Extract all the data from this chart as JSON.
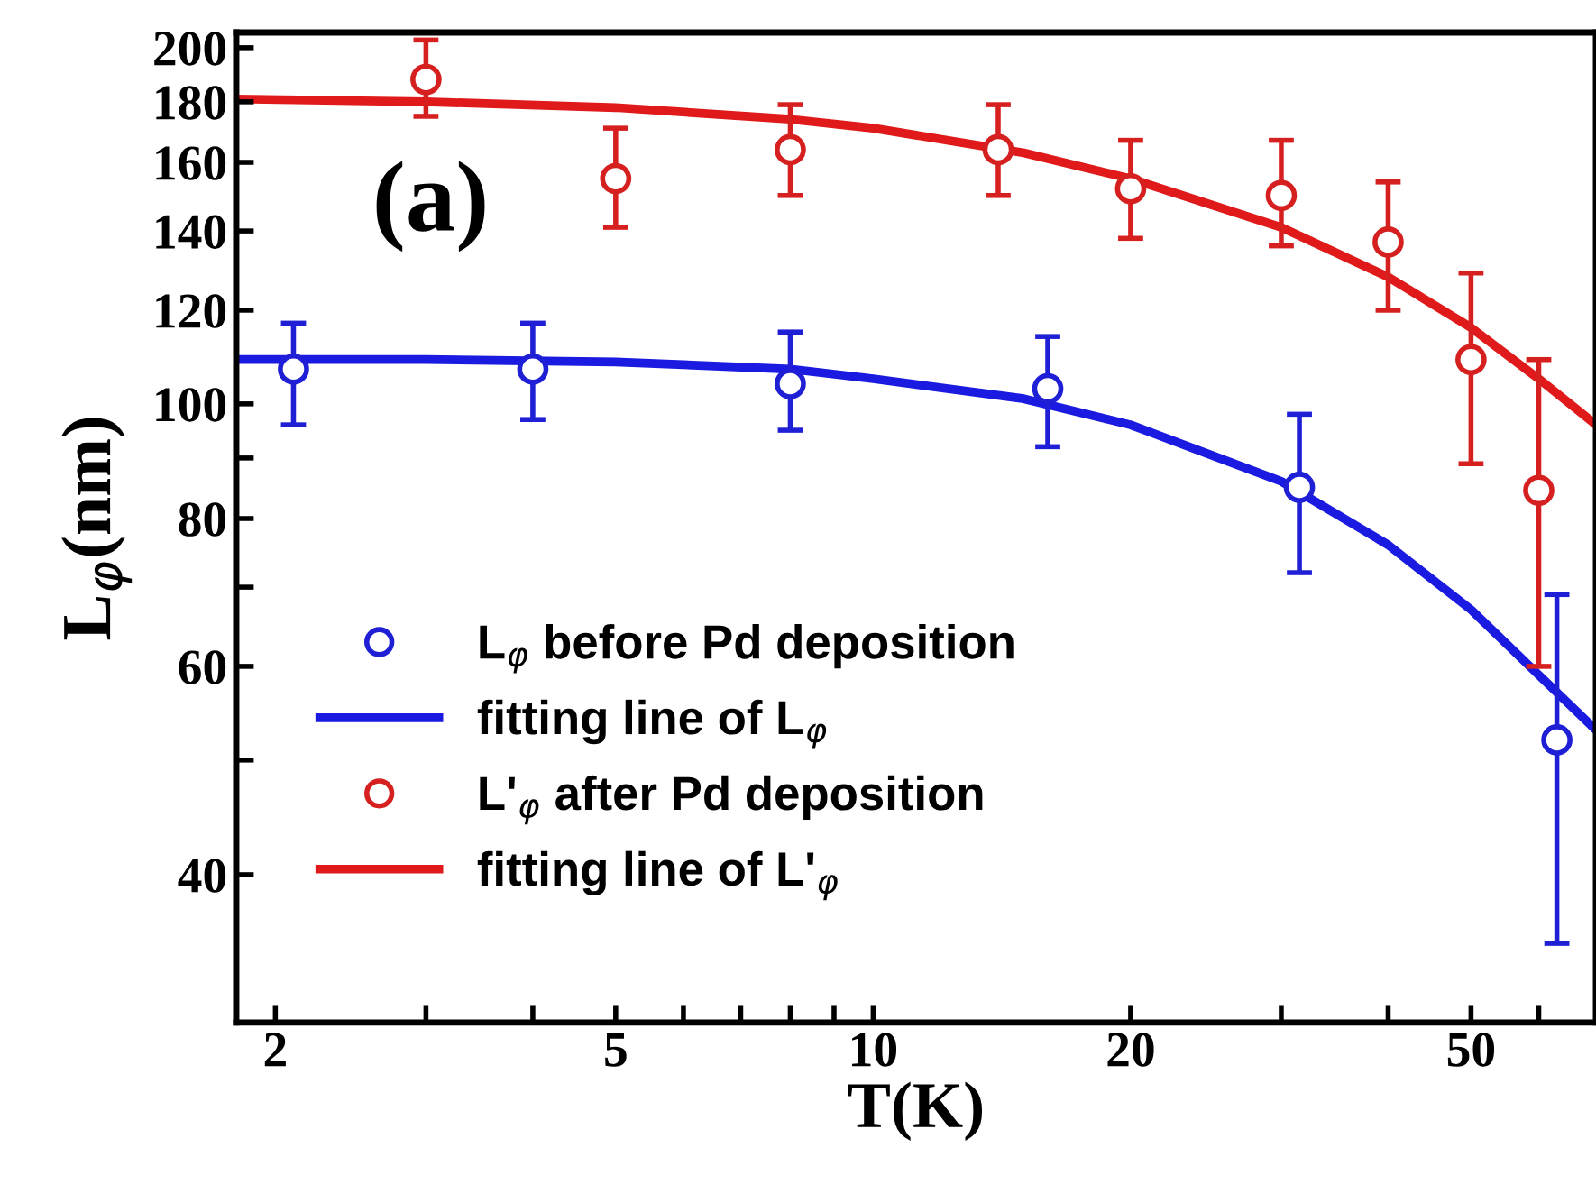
{
  "chart_data": {
    "type": "scatter",
    "xlabel": "T(K)",
    "ylabel": "L$_{φ}$(nm)",
    "annotations": [
      "(a)"
    ],
    "log": "xy",
    "xlim": [
      1.8,
      70
    ],
    "ylim": [
      30,
      206
    ],
    "xticks": [
      2,
      {
        "value": 3,
        "label": null
      },
      {
        "value": 4,
        "label": null
      },
      5,
      {
        "value": 6,
        "label": null
      },
      {
        "value": 7,
        "label": null
      },
      {
        "value": 8,
        "label": null
      },
      {
        "value": 9,
        "label": null
      },
      10,
      20,
      {
        "value": 30,
        "label": null
      },
      {
        "value": 40,
        "label": null
      },
      50,
      {
        "value": 60,
        "label": null
      }
    ],
    "yticks": [
      40,
      {
        "value": 50,
        "label": null
      },
      60,
      {
        "value": 70,
        "label": null
      },
      80,
      {
        "value": 90,
        "label": null
      },
      100,
      120,
      140,
      160,
      180,
      200
    ],
    "grid": false,
    "legend": "bottom left",
    "series": [
      {
        "name": "L$_{φ}$ before Pd deposition",
        "marker": "circle",
        "color": "#1f1fd6",
        "x": [
          2.1,
          4,
          8,
          16,
          31.5,
          63
        ],
        "values": [
          107,
          107,
          104,
          103,
          85,
          52
        ],
        "errors": [
          [
            96,
            117
          ],
          [
            97,
            117
          ],
          [
            95,
            115
          ],
          [
            92,
            114
          ],
          [
            72,
            98
          ],
          [
            35,
            69
          ]
        ]
      },
      {
        "name": "fitting line of L$_{φ}$",
        "type": "line",
        "line_style": "solid",
        "color": "#1a1ae0",
        "x": [
          1.8,
          3,
          5,
          8,
          10,
          15,
          20,
          30,
          40,
          50,
          60,
          70
        ],
        "values": [
          109,
          109,
          108.5,
          107,
          105,
          101,
          96,
          86,
          76,
          67,
          59,
          53
        ]
      },
      {
        "name": "L'$_{φ}$ after Pd deposition",
        "marker": "circle",
        "color": "#d62020",
        "x": [
          3,
          5,
          8,
          14,
          20,
          30,
          40,
          50,
          60
        ],
        "values": [
          188,
          155,
          164,
          164,
          152,
          150,
          137,
          109,
          84.5
        ],
        "errors": [
          [
            175,
            203
          ],
          [
            141,
            171
          ],
          [
            150,
            179
          ],
          [
            150,
            179
          ],
          [
            138,
            167
          ],
          [
            136,
            167
          ],
          [
            120,
            154
          ],
          [
            89,
            129
          ],
          [
            60,
            109
          ]
        ]
      },
      {
        "name": "fitting line of L'$_{φ}$",
        "type": "line",
        "line_style": "solid",
        "color": "#e01a1a",
        "x": [
          1.8,
          3,
          5,
          8,
          10,
          15,
          20,
          30,
          40,
          50,
          60,
          70
        ],
        "values": [
          181,
          180,
          178,
          174,
          171,
          163,
          155,
          141,
          128,
          116,
          105,
          96
        ]
      }
    ]
  }
}
